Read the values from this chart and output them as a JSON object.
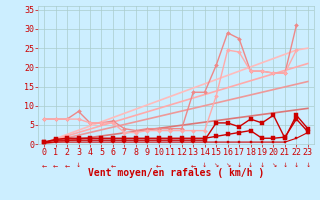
{
  "x": [
    0,
    1,
    2,
    3,
    4,
    5,
    6,
    7,
    8,
    9,
    10,
    11,
    12,
    13,
    14,
    15,
    16,
    17,
    18,
    19,
    20,
    21,
    22,
    23
  ],
  "series": [
    {
      "name": "straight_lightest_pink",
      "color": "#ffbbbb",
      "lw": 1.2,
      "marker": null,
      "markersize": 0,
      "y": [
        0.3,
        1.4,
        2.5,
        3.6,
        4.7,
        5.8,
        6.9,
        8.0,
        9.1,
        10.2,
        11.3,
        12.4,
        13.5,
        14.6,
        15.7,
        16.8,
        17.9,
        19.0,
        20.1,
        21.2,
        22.3,
        23.4,
        24.5,
        25.0
      ]
    },
    {
      "name": "straight_light_pink",
      "color": "#ffaaaa",
      "lw": 1.2,
      "marker": null,
      "markersize": 0,
      "y": [
        0.3,
        1.2,
        2.1,
        3.0,
        3.9,
        4.8,
        5.7,
        6.6,
        7.5,
        8.4,
        9.3,
        10.2,
        11.1,
        12.0,
        12.9,
        13.8,
        14.7,
        15.6,
        16.5,
        17.4,
        18.3,
        19.2,
        20.1,
        21.0
      ]
    },
    {
      "name": "straight_mid_pink",
      "color": "#ee9999",
      "lw": 1.2,
      "marker": null,
      "markersize": 0,
      "y": [
        0.2,
        0.9,
        1.6,
        2.3,
        3.0,
        3.7,
        4.4,
        5.1,
        5.8,
        6.5,
        7.2,
        7.9,
        8.6,
        9.3,
        10.0,
        10.7,
        11.4,
        12.1,
        12.8,
        13.5,
        14.2,
        14.9,
        15.6,
        16.3
      ]
    },
    {
      "name": "straight_dark_pink",
      "color": "#dd7777",
      "lw": 1.2,
      "marker": null,
      "markersize": 0,
      "y": [
        0.1,
        0.5,
        0.9,
        1.3,
        1.7,
        2.1,
        2.5,
        2.9,
        3.3,
        3.7,
        4.1,
        4.5,
        4.9,
        5.3,
        5.7,
        6.1,
        6.5,
        6.9,
        7.3,
        7.7,
        8.1,
        8.5,
        8.9,
        9.3
      ]
    },
    {
      "name": "jagged_pink_upper",
      "color": "#ee8888",
      "lw": 1.0,
      "marker": "D",
      "markersize": 2.0,
      "y": [
        6.5,
        6.5,
        6.5,
        8.5,
        5.5,
        5.5,
        6.0,
        4.0,
        3.5,
        4.0,
        4.0,
        4.0,
        4.0,
        13.5,
        13.5,
        20.5,
        29.0,
        27.5,
        19.0,
        19.0,
        18.5,
        18.5,
        31.0,
        null
      ]
    },
    {
      "name": "jagged_light_pink_upper",
      "color": "#ffaaaa",
      "lw": 1.0,
      "marker": "D",
      "markersize": 2.0,
      "y": [
        6.5,
        6.5,
        6.5,
        6.5,
        5.5,
        5.5,
        5.5,
        3.0,
        3.0,
        3.5,
        3.5,
        3.5,
        3.5,
        3.5,
        3.5,
        12.5,
        24.5,
        24.0,
        19.0,
        19.0,
        18.5,
        18.5,
        24.5,
        null
      ]
    },
    {
      "name": "jagged_red_lower1",
      "color": "#cc0000",
      "lw": 1.0,
      "marker": "s",
      "markersize": 2.5,
      "y": [
        0.5,
        1.0,
        1.0,
        1.0,
        1.0,
        1.0,
        1.0,
        1.0,
        1.0,
        1.0,
        1.0,
        1.0,
        1.0,
        1.0,
        1.0,
        5.5,
        5.5,
        4.5,
        6.5,
        5.5,
        7.5,
        1.5,
        7.5,
        4.0
      ]
    },
    {
      "name": "jagged_red_lower2",
      "color": "#cc0000",
      "lw": 1.0,
      "marker": "s",
      "markersize": 2.5,
      "y": [
        0.5,
        1.2,
        1.5,
        1.5,
        1.5,
        1.5,
        1.5,
        1.5,
        1.5,
        1.5,
        1.5,
        1.5,
        1.5,
        1.5,
        1.5,
        2.0,
        2.5,
        3.0,
        3.5,
        1.5,
        1.5,
        1.8,
        6.5,
        3.2
      ]
    },
    {
      "name": "flat_red_bottom",
      "color": "#cc0000",
      "lw": 0.8,
      "marker": "s",
      "markersize": 2.0,
      "y": [
        0.3,
        0.5,
        0.5,
        0.5,
        0.5,
        0.5,
        0.5,
        0.5,
        0.5,
        0.5,
        0.5,
        0.5,
        0.5,
        0.5,
        0.5,
        0.5,
        0.5,
        0.5,
        0.5,
        0.5,
        0.5,
        0.5,
        1.5,
        3.0
      ]
    }
  ],
  "arrow_data": [
    {
      "x": 0,
      "char": "←"
    },
    {
      "x": 1,
      "char": "←"
    },
    {
      "x": 2,
      "char": "←"
    },
    {
      "x": 3,
      "char": "↓"
    },
    {
      "x": 6,
      "char": "←"
    },
    {
      "x": 10,
      "char": "←"
    },
    {
      "x": 13,
      "char": "←"
    },
    {
      "x": 14,
      "char": "↓"
    },
    {
      "x": 15,
      "char": "↘"
    },
    {
      "x": 16,
      "char": "↘"
    },
    {
      "x": 17,
      "char": "↓"
    },
    {
      "x": 18,
      "char": "↓"
    },
    {
      "x": 19,
      "char": "↓"
    },
    {
      "x": 20,
      "char": "↘"
    },
    {
      "x": 21,
      "char": "↓"
    },
    {
      "x": 22,
      "char": "↓"
    },
    {
      "x": 23,
      "char": "↓"
    }
  ],
  "xlabel": "Vent moyen/en rafales ( km/h )",
  "xlim": [
    -0.5,
    23.5
  ],
  "ylim": [
    0,
    36
  ],
  "yticks": [
    0,
    5,
    10,
    15,
    20,
    25,
    30,
    35
  ],
  "xticks": [
    0,
    1,
    2,
    3,
    4,
    5,
    6,
    7,
    8,
    9,
    10,
    11,
    12,
    13,
    14,
    15,
    16,
    17,
    18,
    19,
    20,
    21,
    22,
    23
  ],
  "bg_color": "#cceeff",
  "grid_color": "#aacccc",
  "text_color": "#cc0000",
  "xlabel_fontsize": 7,
  "tick_fontsize": 6
}
